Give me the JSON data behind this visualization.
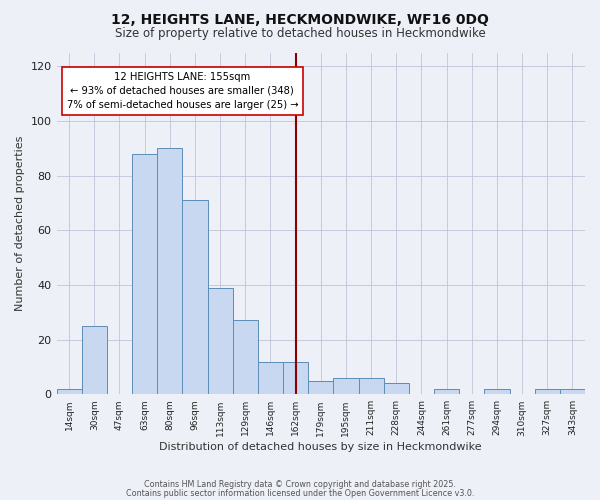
{
  "title": "12, HEIGHTS LANE, HECKMONDWIKE, WF16 0DQ",
  "subtitle": "Size of property relative to detached houses in Heckmondwike",
  "xlabel": "Distribution of detached houses by size in Heckmondwike",
  "ylabel": "Number of detached properties",
  "bin_labels": [
    "14sqm",
    "30sqm",
    "47sqm",
    "63sqm",
    "80sqm",
    "96sqm",
    "113sqm",
    "129sqm",
    "146sqm",
    "162sqm",
    "179sqm",
    "195sqm",
    "211sqm",
    "228sqm",
    "244sqm",
    "261sqm",
    "277sqm",
    "294sqm",
    "310sqm",
    "327sqm",
    "343sqm"
  ],
  "bar_values": [
    2,
    25,
    0,
    88,
    90,
    71,
    39,
    27,
    12,
    12,
    5,
    6,
    6,
    4,
    0,
    2,
    0,
    2,
    0,
    2,
    2
  ],
  "bar_color": "#c8d8f0",
  "bar_edge_color": "#5b8db8",
  "vline_x": 9.0,
  "vline_color": "#8b0000",
  "annotation_title": "12 HEIGHTS LANE: 155sqm",
  "annotation_line1": "← 93% of detached houses are smaller (348)",
  "annotation_line2": "7% of semi-detached houses are larger (25) →",
  "annotation_box_color": "#ffffff",
  "annotation_box_edge": "#cc0000",
  "ylim": [
    0,
    125
  ],
  "yticks": [
    0,
    20,
    40,
    60,
    80,
    100,
    120
  ],
  "footer1": "Contains HM Land Registry data © Crown copyright and database right 2025.",
  "footer2": "Contains public sector information licensed under the Open Government Licence v3.0.",
  "background_color": "#eef0f8"
}
